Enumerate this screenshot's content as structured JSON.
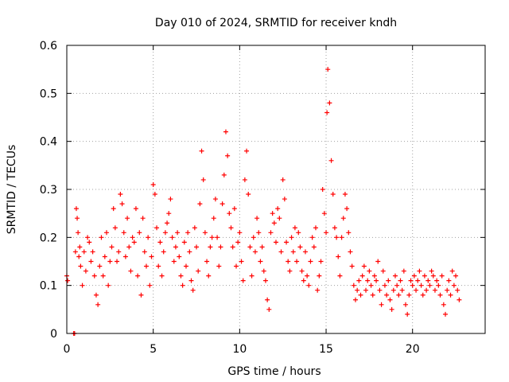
{
  "chart_data": {
    "type": "scatter",
    "title": "Day 010 of 2024, SRMTID for receiver kndh",
    "xlabel": "GPS time / hours",
    "ylabel": "SRMTID / TECUs",
    "xlim": [
      0,
      24.2
    ],
    "ylim": [
      0,
      0.6
    ],
    "xticks": [
      0,
      5,
      10,
      15,
      20
    ],
    "xtick_labels": [
      "0",
      "5",
      "10",
      "15",
      "20"
    ],
    "yticks": [
      0,
      0.1,
      0.2,
      0.3,
      0.4,
      0.5,
      0.6
    ],
    "ytick_labels": [
      "0",
      "0.1",
      "0.2",
      "0.3",
      "0.4",
      "0.5",
      "0.6"
    ],
    "grid": true,
    "marker": "+",
    "series": [
      {
        "name": "SRMTID",
        "color": "#ff0000",
        "x": [
          0.0,
          0.05,
          0.4,
          0.45,
          0.5,
          0.55,
          0.6,
          0.65,
          0.7,
          0.75,
          0.8,
          0.9,
          1.0,
          1.1,
          1.2,
          1.3,
          1.4,
          1.5,
          1.6,
          1.7,
          1.8,
          1.9,
          2.0,
          2.1,
          2.2,
          2.3,
          2.4,
          2.5,
          2.6,
          2.7,
          2.8,
          2.9,
          3.0,
          3.1,
          3.2,
          3.3,
          3.4,
          3.5,
          3.6,
          3.7,
          3.8,
          3.9,
          4.0,
          4.1,
          4.2,
          4.3,
          4.4,
          4.5,
          4.6,
          4.7,
          4.8,
          4.9,
          5.0,
          5.1,
          5.2,
          5.3,
          5.4,
          5.5,
          5.6,
          5.7,
          5.8,
          5.9,
          6.0,
          6.1,
          6.2,
          6.3,
          6.4,
          6.5,
          6.6,
          6.7,
          6.8,
          6.9,
          7.0,
          7.1,
          7.2,
          7.3,
          7.4,
          7.5,
          7.6,
          7.7,
          7.8,
          7.9,
          8.0,
          8.1,
          8.2,
          8.3,
          8.4,
          8.5,
          8.6,
          8.7,
          8.8,
          8.9,
          9.0,
          9.1,
          9.2,
          9.3,
          9.4,
          9.5,
          9.6,
          9.7,
          9.8,
          9.9,
          10.0,
          10.1,
          10.2,
          10.3,
          10.4,
          10.5,
          10.6,
          10.7,
          10.8,
          10.9,
          11.0,
          11.1,
          11.2,
          11.3,
          11.4,
          11.5,
          11.6,
          11.7,
          11.8,
          11.9,
          12.0,
          12.1,
          12.2,
          12.3,
          12.4,
          12.5,
          12.6,
          12.7,
          12.8,
          12.9,
          13.0,
          13.1,
          13.2,
          13.3,
          13.4,
          13.5,
          13.6,
          13.7,
          13.8,
          13.9,
          14.0,
          14.1,
          14.2,
          14.3,
          14.4,
          14.5,
          14.6,
          14.7,
          14.8,
          14.9,
          15.0,
          15.05,
          15.1,
          15.2,
          15.3,
          15.4,
          15.5,
          15.6,
          15.7,
          15.8,
          15.9,
          16.0,
          16.1,
          16.2,
          16.3,
          16.4,
          16.5,
          16.6,
          16.7,
          16.8,
          16.9,
          17.0,
          17.1,
          17.2,
          17.3,
          17.4,
          17.5,
          17.6,
          17.7,
          17.8,
          17.9,
          18.0,
          18.1,
          18.2,
          18.3,
          18.4,
          18.5,
          18.6,
          18.7,
          18.8,
          18.9,
          19.0,
          19.1,
          19.2,
          19.3,
          19.4,
          19.5,
          19.6,
          19.7,
          19.8,
          19.9,
          20.0,
          20.1,
          20.2,
          20.3,
          20.4,
          20.5,
          20.6,
          20.7,
          20.8,
          20.9,
          21.0,
          21.1,
          21.2,
          21.3,
          21.4,
          21.5,
          21.6,
          21.7,
          21.8,
          21.9,
          22.0,
          22.1,
          22.2,
          22.3,
          22.4,
          22.5,
          22.6,
          22.7
        ],
        "y": [
          0.12,
          0.11,
          0.0,
          0.0,
          0.17,
          0.26,
          0.24,
          0.21,
          0.16,
          0.18,
          0.14,
          0.1,
          0.17,
          0.13,
          0.2,
          0.19,
          0.15,
          0.17,
          0.12,
          0.08,
          0.06,
          0.14,
          0.2,
          0.12,
          0.16,
          0.21,
          0.1,
          0.15,
          0.18,
          0.26,
          0.22,
          0.15,
          0.17,
          0.29,
          0.27,
          0.21,
          0.16,
          0.24,
          0.18,
          0.13,
          0.2,
          0.19,
          0.26,
          0.12,
          0.21,
          0.08,
          0.24,
          0.17,
          0.14,
          0.2,
          0.1,
          0.16,
          0.31,
          0.29,
          0.22,
          0.14,
          0.19,
          0.12,
          0.17,
          0.21,
          0.23,
          0.25,
          0.28,
          0.2,
          0.15,
          0.18,
          0.21,
          0.16,
          0.12,
          0.1,
          0.19,
          0.14,
          0.21,
          0.17,
          0.11,
          0.09,
          0.22,
          0.18,
          0.13,
          0.27,
          0.38,
          0.32,
          0.21,
          0.15,
          0.12,
          0.18,
          0.2,
          0.24,
          0.28,
          0.2,
          0.14,
          0.18,
          0.27,
          0.33,
          0.42,
          0.37,
          0.25,
          0.22,
          0.18,
          0.26,
          0.14,
          0.19,
          0.21,
          0.15,
          0.11,
          0.32,
          0.38,
          0.29,
          0.18,
          0.12,
          0.2,
          0.17,
          0.24,
          0.21,
          0.15,
          0.18,
          0.13,
          0.11,
          0.07,
          0.05,
          0.21,
          0.25,
          0.23,
          0.19,
          0.26,
          0.24,
          0.17,
          0.32,
          0.28,
          0.19,
          0.15,
          0.13,
          0.2,
          0.17,
          0.22,
          0.15,
          0.21,
          0.18,
          0.13,
          0.11,
          0.17,
          0.12,
          0.1,
          0.15,
          0.2,
          0.18,
          0.22,
          0.09,
          0.12,
          0.15,
          0.3,
          0.25,
          0.21,
          0.46,
          0.55,
          0.48,
          0.36,
          0.29,
          0.22,
          0.2,
          0.16,
          0.12,
          0.2,
          0.24,
          0.29,
          0.26,
          0.21,
          0.17,
          0.14,
          0.1,
          0.07,
          0.09,
          0.11,
          0.08,
          0.12,
          0.14,
          0.09,
          0.11,
          0.13,
          0.1,
          0.08,
          0.12,
          0.11,
          0.15,
          0.09,
          0.06,
          0.13,
          0.1,
          0.08,
          0.11,
          0.07,
          0.05,
          0.09,
          0.12,
          0.1,
          0.08,
          0.11,
          0.09,
          0.13,
          0.06,
          0.04,
          0.08,
          0.11,
          0.1,
          0.12,
          0.09,
          0.11,
          0.13,
          0.1,
          0.08,
          0.12,
          0.09,
          0.11,
          0.1,
          0.13,
          0.12,
          0.09,
          0.11,
          0.1,
          0.08,
          0.12,
          0.06,
          0.04,
          0.09,
          0.11,
          0.08,
          0.13,
          0.1,
          0.12,
          0.09,
          0.07
        ]
      }
    ]
  }
}
